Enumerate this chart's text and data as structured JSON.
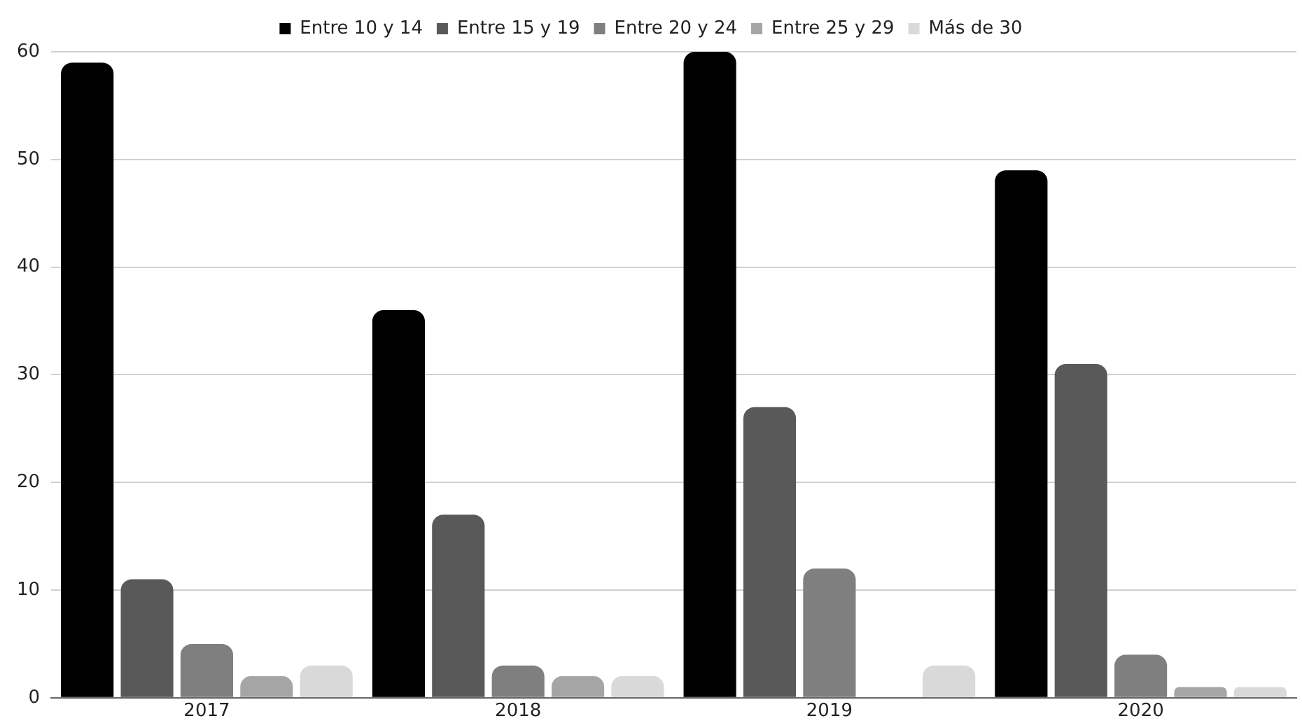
{
  "chart_data": {
    "type": "bar",
    "categories": [
      "2017",
      "2018",
      "2019",
      "2020"
    ],
    "series": [
      {
        "name": "Entre 10 y 14",
        "color": "#000000",
        "values": [
          59,
          36,
          60,
          49
        ]
      },
      {
        "name": "Entre 15 y 19",
        "color": "#595959",
        "values": [
          11,
          17,
          27,
          31
        ]
      },
      {
        "name": "Entre 20 y 24",
        "color": "#7f7f7f",
        "values": [
          5,
          3,
          12,
          4
        ]
      },
      {
        "name": "Entre 25 y 29",
        "color": "#a5a5a5",
        "values": [
          2,
          2,
          0,
          1
        ]
      },
      {
        "name": "Más de 30",
        "color": "#d9d9d9",
        "values": [
          3,
          2,
          3,
          1
        ]
      }
    ],
    "ylim": [
      0,
      60
    ],
    "yticks": [
      0,
      10,
      20,
      30,
      40,
      50,
      60
    ],
    "grid": "y",
    "legend": "top"
  }
}
